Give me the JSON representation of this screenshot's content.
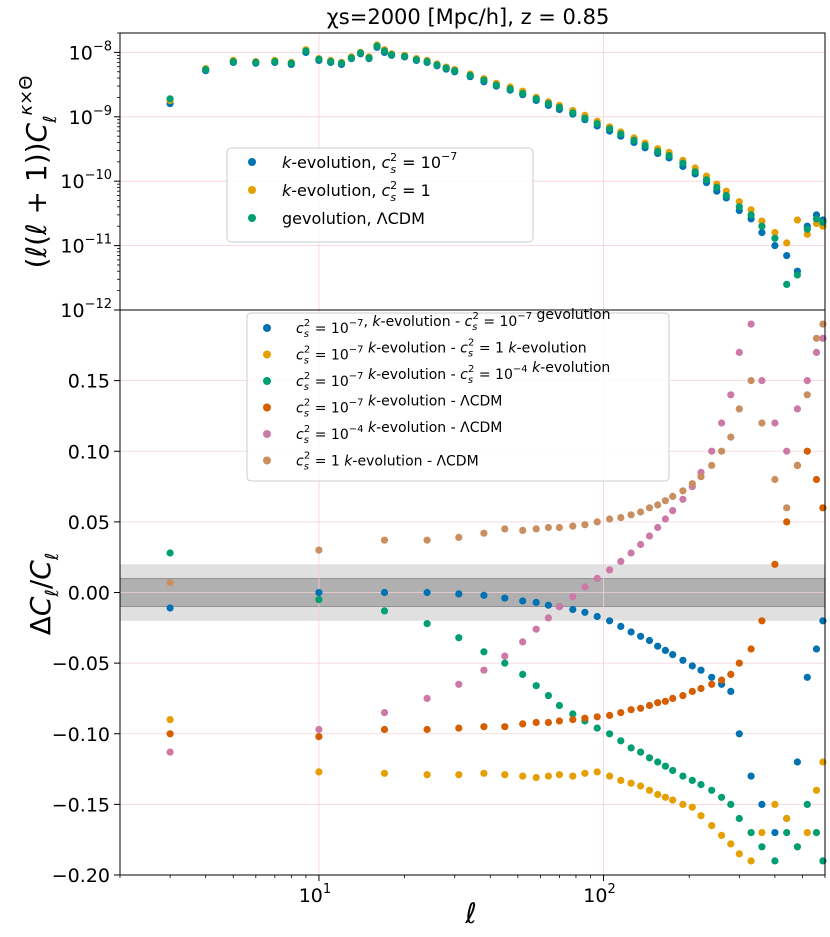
{
  "chart_data": [
    {
      "type": "scatter",
      "title": "χs=2000 [Mpc/h], z = 0.85",
      "xlabel": "",
      "ylabel": "(ℓ(ℓ + 1))Cℓκ×Θ",
      "xscale": "log",
      "yscale": "log",
      "xlim": [
        2,
        600
      ],
      "ylim": [
        1e-12,
        2e-08
      ],
      "grid": true,
      "legend_position": "center-left",
      "yticks": [
        {
          "value": 1e-12,
          "base": "10",
          "exp": "−12"
        },
        {
          "value": 1e-11,
          "base": "10",
          "exp": "−11"
        },
        {
          "value": 1e-10,
          "base": "10",
          "exp": "−10"
        },
        {
          "value": 1e-09,
          "base": "10",
          "exp": "−9"
        },
        {
          "value": 1e-08,
          "base": "10",
          "exp": "−8"
        }
      ],
      "series": [
        {
          "name": "k-evolution, c_s^2 = 10^-7",
          "legend_parts": {
            "pre": "k",
            "mid": "-evolution, ",
            "c": "c",
            "s": "s",
            "two": "2",
            "eq": " = 10",
            "exp": "−7"
          },
          "color": "#0072b2",
          "x": [
            3,
            4,
            5,
            6,
            7,
            8,
            9,
            10,
            11,
            12,
            13,
            14,
            15,
            16,
            17,
            18,
            20,
            22,
            24,
            26,
            28,
            30,
            34,
            38,
            42,
            47,
            52,
            58,
            64,
            70,
            78,
            86,
            95,
            105,
            115,
            128,
            140,
            155,
            170,
            190,
            210,
            230,
            250,
            270,
            300,
            330,
            360,
            400,
            440,
            480,
            520,
            560,
            590
          ],
          "y": [
            1.6e-09,
            5.2e-09,
            7e-09,
            6.8e-09,
            7e-09,
            6.5e-09,
            1e-08,
            7.5e-09,
            7e-09,
            6.5e-09,
            8e-09,
            9.5e-09,
            8e-09,
            1.2e-08,
            1e-08,
            9e-09,
            8.5e-09,
            7.5e-09,
            7e-09,
            6.2e-09,
            5.5e-09,
            5e-09,
            4.2e-09,
            3.5e-09,
            3e-09,
            2.6e-09,
            2.2e-09,
            1.8e-09,
            1.5e-09,
            1.3e-09,
            1.1e-09,
            9e-10,
            7.2e-10,
            6e-10,
            5e-10,
            4e-10,
            3.3e-10,
            2.7e-10,
            2.3e-10,
            1.7e-10,
            1.3e-10,
            9.5e-11,
            7e-11,
            5.5e-11,
            3.5e-11,
            2.6e-11,
            1.6e-11,
            1e-11,
            7e-12,
            4e-12,
            2e-11,
            3e-11,
            2.5e-11
          ]
        },
        {
          "name": "k-evolution, c_s^2 = 1",
          "legend_parts": {
            "pre": "k",
            "mid": "-evolution, ",
            "c": "c",
            "s": "s",
            "two": "2",
            "eq": " = 1",
            "exp": ""
          },
          "color": "#e69f00",
          "x": [
            3,
            4,
            5,
            6,
            7,
            8,
            9,
            10,
            11,
            12,
            13,
            14,
            15,
            16,
            17,
            18,
            20,
            22,
            24,
            26,
            28,
            30,
            34,
            38,
            42,
            47,
            52,
            58,
            64,
            70,
            78,
            86,
            95,
            105,
            115,
            128,
            140,
            155,
            170,
            190,
            210,
            230,
            250,
            270,
            300,
            330,
            360,
            400,
            440,
            480,
            520,
            560,
            590
          ],
          "y": [
            1.8e-09,
            5.6e-09,
            7.5e-09,
            7.2e-09,
            7.5e-09,
            7e-09,
            1.1e-08,
            8e-09,
            7.5e-09,
            7e-09,
            8.5e-09,
            1e-08,
            8.5e-09,
            1.3e-08,
            1.1e-08,
            9.5e-09,
            9e-09,
            8e-09,
            7.5e-09,
            6.6e-09,
            5.9e-09,
            5.4e-09,
            4.6e-09,
            3.9e-09,
            3.3e-09,
            2.9e-09,
            2.5e-09,
            2e-09,
            1.7e-09,
            1.5e-09,
            1.25e-09,
            1.05e-09,
            8.5e-10,
            7e-10,
            5.8e-10,
            4.7e-10,
            3.9e-10,
            3.2e-10,
            2.8e-10,
            2.1e-10,
            1.6e-10,
            1.2e-10,
            9e-11,
            7e-11,
            4.8e-11,
            3.6e-11,
            2.4e-11,
            1.6e-11,
            1.1e-11,
            2.5e-11,
            1.5e-11,
            2.2e-11,
            2e-11
          ]
        },
        {
          "name": "gevolution, ΛCDM",
          "legend_parts": {
            "text": "gevolution, ΛCDM"
          },
          "color": "#009e73",
          "x": [
            3,
            4,
            5,
            6,
            7,
            8,
            9,
            10,
            11,
            12,
            13,
            14,
            15,
            16,
            17,
            18,
            20,
            22,
            24,
            26,
            28,
            30,
            34,
            38,
            42,
            47,
            52,
            58,
            64,
            70,
            78,
            86,
            95,
            105,
            115,
            128,
            140,
            155,
            170,
            190,
            210,
            230,
            250,
            270,
            300,
            330,
            360,
            400,
            440,
            480,
            520,
            560,
            590
          ],
          "y": [
            1.9e-09,
            5.4e-09,
            7.2e-09,
            7e-09,
            7.2e-09,
            6.8e-09,
            1.05e-08,
            7.8e-09,
            7.2e-09,
            6.8e-09,
            8.2e-09,
            9.8e-09,
            8.2e-09,
            1.25e-08,
            1.05e-08,
            9.2e-09,
            8.7e-09,
            7.7e-09,
            7.2e-09,
            6.4e-09,
            5.7e-09,
            5.2e-09,
            4.4e-09,
            3.7e-09,
            3.1e-09,
            2.7e-09,
            2.3e-09,
            1.9e-09,
            1.6e-09,
            1.4e-09,
            1.15e-09,
            9.5e-10,
            7.8e-10,
            6.5e-10,
            5.4e-10,
            4.3e-10,
            3.6e-10,
            2.9e-10,
            2.5e-10,
            1.9e-10,
            1.4e-10,
            1.05e-10,
            8e-11,
            6e-11,
            4e-11,
            3e-11,
            2e-11,
            1.3e-11,
            2.5e-12,
            3.5e-12,
            1.8e-11,
            2.6e-11,
            2.3e-11
          ]
        }
      ]
    },
    {
      "type": "scatter",
      "title": "",
      "xlabel": "ℓ",
      "ylabel": "ΔCℓ/Cℓ",
      "xscale": "log",
      "xlim": [
        2,
        600
      ],
      "ylim": [
        -0.2,
        0.2
      ],
      "grid": true,
      "legend_position": "top-center",
      "bands": [
        {
          "y0": -0.02,
          "y1": 0.02,
          "color": "#e0e0e0"
        },
        {
          "y0": -0.01,
          "y1": 0.01,
          "color": "#b0b0b0"
        }
      ],
      "xticks": [
        {
          "value": 10,
          "base": "10",
          "exp": "1"
        },
        {
          "value": 100,
          "base": "10",
          "exp": "2"
        }
      ],
      "yticks": [
        {
          "value": -0.2,
          "label": "−0.20"
        },
        {
          "value": -0.15,
          "label": "−0.15"
        },
        {
          "value": -0.1,
          "label": "−0.10"
        },
        {
          "value": -0.05,
          "label": "−0.05"
        },
        {
          "value": 0.0,
          "label": "0.00"
        },
        {
          "value": 0.05,
          "label": "0.05"
        },
        {
          "value": 0.1,
          "label": "0.10"
        },
        {
          "value": 0.15,
          "label": "0.15"
        }
      ],
      "series": [
        {
          "name": "c_s^2=10^-7, k-evolution - c_s^2=10^-7 gevolution",
          "legend_parts": {
            "lhs_exp": "−7",
            "sep": ", ",
            "k": "k",
            "mid": "-evolution - ",
            "rhs_eq": " = 10",
            "rhs_exp": "−7",
            "tail": " gevolution"
          },
          "color": "#0072b2",
          "x": [
            3,
            10,
            17,
            24,
            31,
            38,
            45,
            52,
            58,
            64,
            70,
            78,
            86,
            95,
            105,
            115,
            125,
            135,
            145,
            155,
            165,
            175,
            190,
            205,
            220,
            240,
            260,
            280,
            300,
            330,
            360,
            400,
            440,
            480,
            520,
            560,
            590
          ],
          "y": [
            -0.011,
            0.0,
            0.0,
            0.0,
            -0.001,
            -0.002,
            -0.004,
            -0.006,
            -0.007,
            -0.009,
            -0.01,
            -0.012,
            -0.014,
            -0.017,
            -0.02,
            -0.024,
            -0.028,
            -0.031,
            -0.034,
            -0.038,
            -0.041,
            -0.044,
            -0.048,
            -0.052,
            -0.055,
            -0.06,
            -0.065,
            -0.07,
            -0.1,
            -0.13,
            -0.15,
            -0.17,
            -0.16,
            -0.12,
            -0.06,
            -0.04,
            -0.02
          ]
        },
        {
          "name": "c_s^2=10^-7 k-evolution - c_s^2=1 k-evolution",
          "legend_parts": {
            "lhs_exp": "−7",
            "sep": "  ",
            "k": "k",
            "mid": "-evolution - ",
            "rhs_eq": " = 1",
            "rhs_exp": "",
            "tail": "  k-evolution"
          },
          "color": "#e69f00",
          "x": [
            3,
            10,
            17,
            24,
            31,
            38,
            45,
            52,
            58,
            64,
            70,
            78,
            86,
            95,
            105,
            115,
            125,
            135,
            145,
            155,
            165,
            175,
            190,
            205,
            220,
            240,
            260,
            280,
            300,
            330,
            360,
            400,
            440,
            480,
            520,
            560,
            590
          ],
          "y": [
            -0.09,
            -0.127,
            -0.128,
            -0.129,
            -0.129,
            -0.128,
            -0.129,
            -0.13,
            -0.131,
            -0.13,
            -0.129,
            -0.13,
            -0.128,
            -0.127,
            -0.13,
            -0.133,
            -0.135,
            -0.137,
            -0.14,
            -0.143,
            -0.145,
            -0.147,
            -0.15,
            -0.152,
            -0.158,
            -0.165,
            -0.172,
            -0.178,
            -0.185,
            -0.19,
            -0.17,
            -0.15,
            -0.16,
            -0.18,
            -0.17,
            -0.14,
            -0.12
          ]
        },
        {
          "name": "c_s^2=10^-7 k-evolution - c_s^2=10^-4 k-evolution",
          "legend_parts": {
            "lhs_exp": "−7",
            "sep": "  ",
            "k": "k",
            "mid": "-evolution - ",
            "rhs_eq": " = 10",
            "rhs_exp": "−4",
            "tail": "  k-evolution"
          },
          "color": "#009e73",
          "x": [
            3,
            10,
            17,
            24,
            31,
            38,
            45,
            52,
            58,
            64,
            70,
            78,
            86,
            95,
            105,
            115,
            125,
            135,
            145,
            155,
            165,
            175,
            190,
            205,
            220,
            240,
            260,
            280,
            300,
            330,
            360,
            400,
            440,
            480,
            520,
            560,
            590
          ],
          "y": [
            0.028,
            -0.005,
            -0.013,
            -0.022,
            -0.032,
            -0.042,
            -0.05,
            -0.058,
            -0.066,
            -0.073,
            -0.08,
            -0.086,
            -0.091,
            -0.096,
            -0.1,
            -0.105,
            -0.11,
            -0.113,
            -0.117,
            -0.12,
            -0.123,
            -0.126,
            -0.13,
            -0.133,
            -0.136,
            -0.14,
            -0.145,
            -0.15,
            -0.16,
            -0.17,
            -0.18,
            -0.19,
            -0.17,
            -0.18,
            -0.15,
            -0.17,
            -0.19
          ]
        },
        {
          "name": "c_s^2=10^-7 k-evolution - ΛCDM",
          "legend_parts": {
            "lhs_exp": "−7",
            "sep": "  ",
            "k": "k",
            "mid": "-evolution - ΛCDM"
          },
          "color": "#d55e00",
          "x": [
            3,
            10,
            17,
            24,
            31,
            38,
            45,
            52,
            58,
            64,
            70,
            78,
            86,
            95,
            105,
            115,
            125,
            135,
            145,
            155,
            165,
            175,
            190,
            205,
            220,
            240,
            260,
            280,
            300,
            330,
            360,
            400,
            440,
            480,
            520,
            560,
            590
          ],
          "y": [
            -0.1,
            -0.102,
            -0.097,
            -0.097,
            -0.096,
            -0.095,
            -0.095,
            -0.093,
            -0.092,
            -0.092,
            -0.091,
            -0.09,
            -0.089,
            -0.088,
            -0.087,
            -0.085,
            -0.083,
            -0.082,
            -0.08,
            -0.078,
            -0.077,
            -0.075,
            -0.073,
            -0.07,
            -0.068,
            -0.065,
            -0.062,
            -0.058,
            -0.05,
            -0.04,
            -0.02,
            0.02,
            0.05,
            0.09,
            0.1,
            0.08,
            0.06
          ]
        },
        {
          "name": "c_s^2=10^-4 k-evolution - ΛCDM",
          "legend_parts": {
            "lhs_exp": "−4",
            "sep": "  ",
            "k": "k",
            "mid": "-evolution - ΛCDM"
          },
          "color": "#cc79a7",
          "x": [
            3,
            10,
            17,
            24,
            31,
            38,
            45,
            52,
            58,
            64,
            70,
            78,
            86,
            95,
            105,
            115,
            125,
            135,
            145,
            155,
            165,
            175,
            190,
            205,
            220,
            240,
            260,
            280,
            300,
            330,
            360,
            400,
            440,
            480,
            520,
            560,
            590
          ],
          "y": [
            -0.113,
            -0.097,
            -0.085,
            -0.075,
            -0.065,
            -0.055,
            -0.045,
            -0.035,
            -0.026,
            -0.018,
            -0.01,
            -0.003,
            0.004,
            0.01,
            0.016,
            0.022,
            0.028,
            0.034,
            0.04,
            0.046,
            0.052,
            0.058,
            0.066,
            0.075,
            0.085,
            0.1,
            0.12,
            0.14,
            0.17,
            0.19,
            0.15,
            0.12,
            0.1,
            0.13,
            0.15,
            0.17,
            0.18
          ]
        },
        {
          "name": "c_s^2=1 k-evolution - ΛCDM",
          "legend_parts": {
            "lhs_eq": " = 1",
            "sep": "  ",
            "k": "k",
            "mid": "-evolution - ΛCDM"
          },
          "color": "#c98f60",
          "x": [
            3,
            10,
            17,
            24,
            31,
            38,
            45,
            52,
            58,
            64,
            70,
            78,
            86,
            95,
            105,
            115,
            125,
            135,
            145,
            155,
            165,
            175,
            190,
            205,
            220,
            240,
            260,
            280,
            300,
            330,
            360,
            400,
            440,
            480,
            520,
            560,
            590
          ],
          "y": [
            0.007,
            0.03,
            0.037,
            0.037,
            0.039,
            0.042,
            0.045,
            0.044,
            0.045,
            0.046,
            0.046,
            0.047,
            0.048,
            0.05,
            0.052,
            0.053,
            0.055,
            0.057,
            0.06,
            0.062,
            0.065,
            0.068,
            0.072,
            0.077,
            0.082,
            0.09,
            0.1,
            0.11,
            0.13,
            0.15,
            0.12,
            0.08,
            0.06,
            0.09,
            0.14,
            0.18,
            0.19
          ]
        }
      ]
    }
  ]
}
